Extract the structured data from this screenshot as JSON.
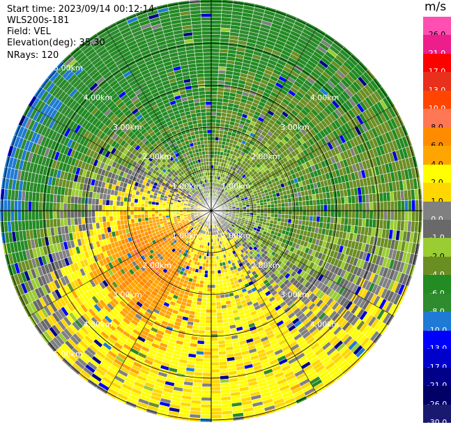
{
  "header": {
    "start_time": "Start time: 2023/09/14 00:12:14",
    "instrument": "WLS200s-181",
    "field": "Field: VEL",
    "elevation": "Elevation(deg): 35.30",
    "nrays": "NRays: 120"
  },
  "chart_data": {
    "type": "heatmap",
    "subtype": "polar-ppi",
    "field": "VEL",
    "units": "m/s",
    "nrays": 120,
    "elevation_deg": 35.3,
    "range_max_km": 5.0,
    "range_ring_labels": [
      "1.00km",
      "2.00km",
      "3.00km",
      "4.00km",
      "5.00km"
    ],
    "colorbar": {
      "unit": "m/s",
      "levels": [
        26.0,
        21.0,
        17.0,
        13.0,
        10.0,
        8.0,
        6.0,
        4.0,
        2.0,
        1.0,
        0.0,
        -1.0,
        -2.0,
        -4.0,
        -6.0,
        -8.0,
        -10.0,
        -13.0,
        -17.0,
        -21.0,
        -26.0,
        -30.0
      ],
      "labels": [
        "26.0",
        "21.0",
        "17.0",
        "13.0",
        "10.0",
        "8.0",
        "6.0",
        "4.0",
        "2.0",
        "1.0",
        "0.0",
        "-1.0",
        "-2.0",
        "-4.0",
        "-6.0",
        "-8.0",
        "-10.0",
        "-13.0",
        "-17.0",
        "-21.0",
        "-26.0",
        "-30.0"
      ],
      "colors": [
        "#ff4fb0",
        "#ee1d8c",
        "#ff0000",
        "#e8301c",
        "#ff4500",
        "#ff7755",
        "#ff8c00",
        "#ffa500",
        "#ffff00",
        "#ffd700",
        "#808080",
        "#696969",
        "#9acd32",
        "#6b8e23",
        "#228b22",
        "#2e8b2e",
        "#1e7ad4",
        "#0000ff",
        "#0000cd",
        "#00008b",
        "#000066",
        "#191970"
      ]
    },
    "sectors_note": "approximate dominant velocity (m/s) per azimuth sector, clockwise from north, by range band",
    "sector_width_deg": 30,
    "sectors": [
      {
        "az": 0,
        "inner": -1.0,
        "mid": -4.0,
        "outer": -6.0
      },
      {
        "az": 30,
        "inner": -1.0,
        "mid": -3.0,
        "outer": -6.0
      },
      {
        "az": 60,
        "inner": -2.0,
        "mid": -3.0,
        "outer": -4.0
      },
      {
        "az": 90,
        "inner": -2.0,
        "mid": -4.0,
        "outer": -3.0
      },
      {
        "az": 120,
        "inner": -1.0,
        "mid": -3.0,
        "outer": 2.0
      },
      {
        "az": 150,
        "inner": 1.0,
        "mid": 2.0,
        "outer": 3.0
      },
      {
        "az": 180,
        "inner": 2.0,
        "mid": 3.0,
        "outer": 2.0
      },
      {
        "az": 210,
        "inner": 3.0,
        "mid": 6.0,
        "outer": 2.0
      },
      {
        "az": 240,
        "inner": 4.0,
        "mid": 8.0,
        "outer": -1.0
      },
      {
        "az": 270,
        "inner": 2.0,
        "mid": 4.0,
        "outer": -9.0
      },
      {
        "az": 300,
        "inner": 2.0,
        "mid": -1.0,
        "outer": -9.0
      },
      {
        "az": 330,
        "inner": -1.0,
        "mid": -5.0,
        "outer": -6.0
      }
    ],
    "grid": true
  }
}
